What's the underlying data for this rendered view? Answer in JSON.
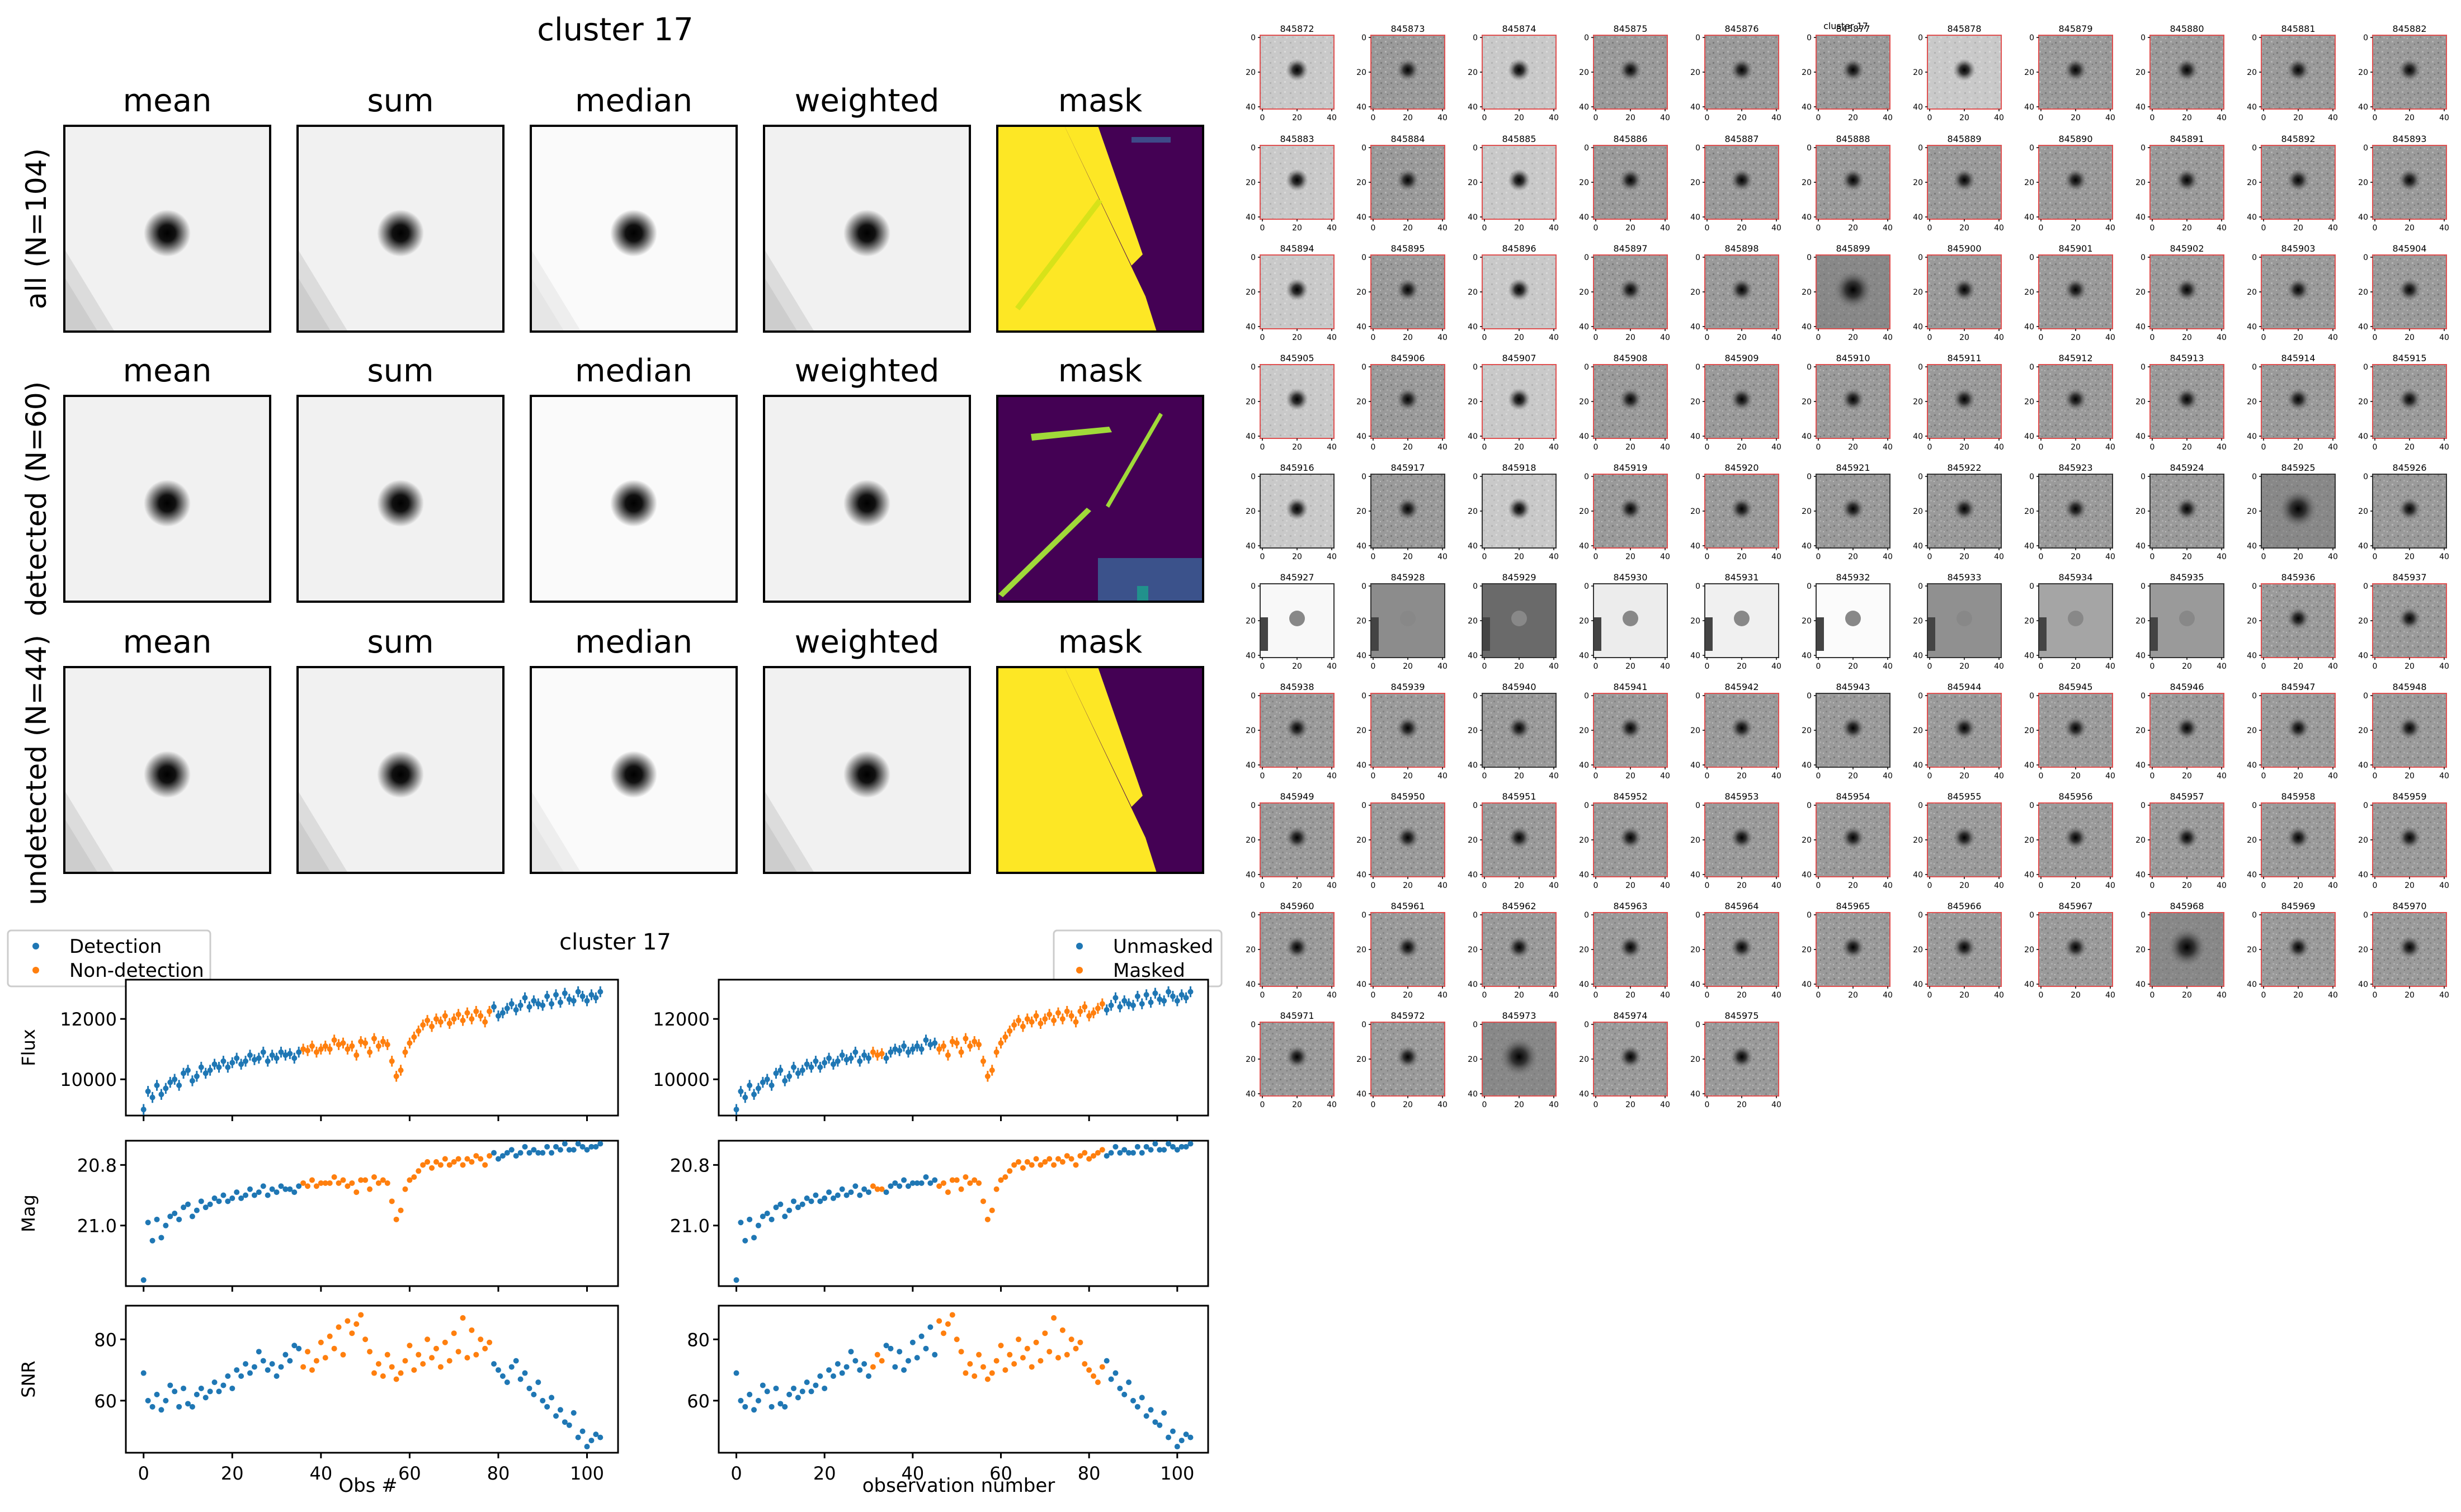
{
  "figure": {
    "title": "cluster 17"
  },
  "stack_grid": {
    "col_titles": [
      "mean",
      "sum",
      "median",
      "weighted",
      "mask"
    ],
    "row_labels": [
      "all (N=104)",
      "detected (N=60)",
      "undetected (N=44)"
    ]
  },
  "cutouts": {
    "title": "cluster 17",
    "ids": [
      "845872",
      "845873",
      "845874",
      "845875",
      "845876",
      "845877",
      "845878",
      "845879",
      "845880",
      "845881",
      "845882",
      "845883",
      "845884",
      "845885",
      "845886",
      "845887",
      "845888",
      "845889",
      "845890",
      "845891",
      "845892",
      "845893",
      "845894",
      "845895",
      "845896",
      "845897",
      "845898",
      "845899",
      "845900",
      "845901",
      "845902",
      "845903",
      "845904",
      "845905",
      "845906",
      "845907",
      "845908",
      "845909",
      "845910",
      "845911",
      "845912",
      "845913",
      "845914",
      "845915",
      "845916",
      "845917",
      "845918",
      "845919",
      "845920",
      "845921",
      "845922",
      "845923",
      "845924",
      "845925",
      "845926",
      "845927",
      "845928",
      "845929",
      "845930",
      "845931",
      "845932",
      "845933",
      "845934",
      "845935",
      "845936",
      "845937",
      "845938",
      "845939",
      "845940",
      "845941",
      "845942",
      "845943",
      "845944",
      "845945",
      "845946",
      "845947",
      "845948",
      "845949",
      "845950",
      "845951",
      "845952",
      "845953",
      "845954",
      "845955",
      "845956",
      "845957",
      "845958",
      "845959",
      "845960",
      "845961",
      "845962",
      "845963",
      "845964",
      "845965",
      "845966",
      "845967",
      "845968",
      "845969",
      "845970",
      "845971",
      "845972",
      "845973",
      "845974",
      "845975"
    ],
    "x_ticks": [
      "0",
      "20",
      "40"
    ],
    "y_ticks": [
      "0",
      "20",
      "40"
    ]
  },
  "lightcurves": {
    "title": "cluster 17",
    "left_legend": [
      "Detection",
      "Non-detection"
    ],
    "right_legend": [
      "Unmasked",
      "Masked"
    ],
    "left_xlabel": "Obs #",
    "right_xlabel": "observation number",
    "ylabels": [
      "Flux",
      "Mag",
      "SNR"
    ],
    "flux_ticks": [
      "10000",
      "12000"
    ],
    "mag_ticks": [
      "20.8",
      "21.0"
    ],
    "snr_ticks": [
      "60",
      "80"
    ],
    "x_ticks": [
      "0",
      "20",
      "40",
      "60",
      "80",
      "100"
    ]
  },
  "chart_data": [
    {
      "type": "scatter",
      "title": "cluster 17",
      "xlabel": "Obs #",
      "ylabel": "Flux",
      "xlim": [
        -4,
        107
      ],
      "ylim": [
        8800,
        13300
      ],
      "series": [
        {
          "name": "Detection",
          "color": "#1f77b4"
        },
        {
          "name": "Non-detection",
          "color": "#ff7f0e"
        }
      ],
      "x": [
        0,
        1,
        2,
        3,
        4,
        5,
        6,
        7,
        8,
        9,
        10,
        11,
        12,
        13,
        14,
        15,
        16,
        17,
        18,
        19,
        20,
        21,
        22,
        23,
        24,
        25,
        26,
        27,
        28,
        29,
        30,
        31,
        32,
        33,
        34,
        35,
        36,
        37,
        38,
        39,
        40,
        41,
        42,
        43,
        44,
        45,
        46,
        47,
        48,
        49,
        50,
        51,
        52,
        53,
        54,
        55,
        56,
        57,
        58,
        59,
        60,
        61,
        62,
        63,
        64,
        65,
        66,
        67,
        68,
        69,
        70,
        71,
        72,
        73,
        74,
        75,
        76,
        77,
        78,
        79,
        80,
        81,
        82,
        83,
        84,
        85,
        86,
        87,
        88,
        89,
        90,
        91,
        92,
        93,
        94,
        95,
        96,
        97,
        98,
        99,
        100,
        101,
        102,
        103
      ],
      "flux": [
        9000,
        9600,
        9400,
        9800,
        9500,
        9700,
        9900,
        10000,
        9800,
        10200,
        10300,
        9950,
        10100,
        10400,
        10200,
        10300,
        10500,
        10400,
        10600,
        10400,
        10550,
        10700,
        10500,
        10600,
        10800,
        10650,
        10700,
        10900,
        10600,
        10800,
        10700,
        10900,
        10800,
        10850,
        10700,
        10900,
        11000,
        10950,
        11100,
        10900,
        11000,
        11100,
        11000,
        11300,
        11150,
        11200,
        11000,
        11100,
        10800,
        11250,
        11200,
        10900,
        11350,
        11100,
        11250,
        11150,
        10600,
        10100,
        10300,
        10900,
        11200,
        11400,
        11600,
        11800,
        11950,
        11750,
        12000,
        11900,
        12100,
        11850,
        12000,
        12150,
        11950,
        12200,
        12000,
        12250,
        12100,
        11900,
        12250,
        12400,
        12100,
        12200,
        12350,
        12500,
        12300,
        12450,
        12700,
        12400,
        12600,
        12500,
        12450,
        12750,
        12500,
        12800,
        12550,
        12850,
        12650,
        12600,
        12900,
        12750,
        12600,
        12800,
        12700,
        12900
      ],
      "mag": [
        21.18,
        20.99,
        21.05,
        20.98,
        21.04,
        21.0,
        20.97,
        20.96,
        20.98,
        20.94,
        20.93,
        20.97,
        20.95,
        20.92,
        20.94,
        20.93,
        20.91,
        20.92,
        20.9,
        20.92,
        20.91,
        20.89,
        20.91,
        20.9,
        20.88,
        20.9,
        20.89,
        20.87,
        20.9,
        20.88,
        20.89,
        20.87,
        20.88,
        20.88,
        20.89,
        20.87,
        20.86,
        20.87,
        20.85,
        20.87,
        20.86,
        20.86,
        20.86,
        20.84,
        20.86,
        20.85,
        20.87,
        20.86,
        20.89,
        20.85,
        20.85,
        20.88,
        20.84,
        20.86,
        20.85,
        20.86,
        20.92,
        20.98,
        20.95,
        20.88,
        20.85,
        20.84,
        20.82,
        20.8,
        20.79,
        20.81,
        20.79,
        20.8,
        20.78,
        20.8,
        20.79,
        20.78,
        20.8,
        20.78,
        20.79,
        20.77,
        20.78,
        20.8,
        20.77,
        20.76,
        20.78,
        20.77,
        20.76,
        20.75,
        20.77,
        20.76,
        20.74,
        20.76,
        20.75,
        20.76,
        20.76,
        20.74,
        20.76,
        20.74,
        20.75,
        20.73,
        20.75,
        20.75,
        20.73,
        20.74,
        20.75,
        20.74,
        20.74,
        20.73
      ],
      "snr": [
        69,
        60,
        58,
        62,
        57,
        60,
        65,
        63,
        58,
        64,
        59,
        58,
        62,
        64,
        61,
        63,
        66,
        63,
        65,
        68,
        64,
        70,
        68,
        72,
        69,
        71,
        76,
        73,
        70,
        72,
        68,
        71,
        75,
        73,
        78,
        77,
        71,
        76,
        70,
        73,
        79,
        74,
        81,
        77,
        84,
        75,
        86,
        82,
        85,
        88,
        80,
        76,
        69,
        72,
        68,
        75,
        71,
        67,
        69,
        73,
        78,
        70,
        75,
        72,
        80,
        74,
        77,
        71,
        79,
        73,
        82,
        76,
        87,
        74,
        83,
        75,
        80,
        77,
        79,
        72,
        70,
        68,
        66,
        71,
        73,
        67,
        69,
        64,
        62,
        66,
        60,
        58,
        61,
        55,
        57,
        53,
        52,
        56,
        48,
        50,
        45,
        47,
        49,
        48
      ],
      "non_detection_range": [
        36,
        78
      ]
    },
    {
      "type": "scatter",
      "xlabel": "observation number",
      "legend": [
        "Unmasked",
        "Masked"
      ],
      "masked_ranges": [
        [
          31,
          33
        ],
        [
          46,
          83
        ]
      ],
      "note": "same flux / mag / snr values as the left column, colored by mask state"
    }
  ],
  "colors": {
    "blue": "#1f77b4",
    "orange": "#ff7f0e",
    "mask_yellow": "#fde725",
    "mask_purple": "#440154",
    "mask_green": "#a0da39"
  }
}
